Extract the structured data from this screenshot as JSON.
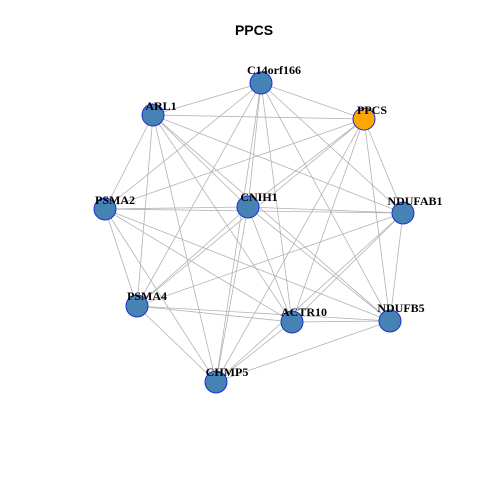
{
  "title": "PPCS",
  "colors": {
    "node_fill": "#4682b4",
    "focus_fill": "#ffa500",
    "node_stroke": "#1f2fd1",
    "edge": "#b3b3b3"
  },
  "nodes": [
    {
      "id": "C14orf166",
      "label": "C14orf166",
      "focus": false
    },
    {
      "id": "PPCS",
      "label": "PPCS",
      "focus": true
    },
    {
      "id": "ARL1",
      "label": "ARL1",
      "focus": false
    },
    {
      "id": "PSMA2",
      "label": "PSMA2",
      "focus": false
    },
    {
      "id": "CNIH1",
      "label": "CNIH1",
      "focus": false
    },
    {
      "id": "NDUFAB1",
      "label": "NDUFAB1",
      "focus": false
    },
    {
      "id": "PSMA4",
      "label": "PSMA4",
      "focus": false
    },
    {
      "id": "ACTR10",
      "label": "ACTR10",
      "focus": false
    },
    {
      "id": "NDUFB5",
      "label": "NDUFB5",
      "focus": false
    },
    {
      "id": "CHMP5",
      "label": "CHMP5",
      "focus": false
    }
  ],
  "edges": [
    [
      "C14orf166",
      "ARL1"
    ],
    [
      "C14orf166",
      "PPCS"
    ],
    [
      "C14orf166",
      "PSMA2"
    ],
    [
      "C14orf166",
      "CNIH1"
    ],
    [
      "C14orf166",
      "NDUFAB1"
    ],
    [
      "C14orf166",
      "PSMA4"
    ],
    [
      "C14orf166",
      "ACTR10"
    ],
    [
      "C14orf166",
      "NDUFB5"
    ],
    [
      "C14orf166",
      "CHMP5"
    ],
    [
      "PPCS",
      "ARL1"
    ],
    [
      "PPCS",
      "PSMA2"
    ],
    [
      "PPCS",
      "CNIH1"
    ],
    [
      "PPCS",
      "NDUFAB1"
    ],
    [
      "PPCS",
      "PSMA4"
    ],
    [
      "PPCS",
      "ACTR10"
    ],
    [
      "PPCS",
      "NDUFB5"
    ],
    [
      "PPCS",
      "CHMP5"
    ],
    [
      "ARL1",
      "PSMA2"
    ],
    [
      "ARL1",
      "CNIH1"
    ],
    [
      "ARL1",
      "NDUFAB1"
    ],
    [
      "ARL1",
      "PSMA4"
    ],
    [
      "ARL1",
      "ACTR10"
    ],
    [
      "ARL1",
      "NDUFB5"
    ],
    [
      "ARL1",
      "CHMP5"
    ],
    [
      "PSMA2",
      "CNIH1"
    ],
    [
      "PSMA2",
      "NDUFAB1"
    ],
    [
      "PSMA2",
      "PSMA4"
    ],
    [
      "PSMA2",
      "ACTR10"
    ],
    [
      "PSMA2",
      "NDUFB5"
    ],
    [
      "PSMA2",
      "CHMP5"
    ],
    [
      "CNIH1",
      "NDUFAB1"
    ],
    [
      "CNIH1",
      "PSMA4"
    ],
    [
      "CNIH1",
      "ACTR10"
    ],
    [
      "CNIH1",
      "NDUFB5"
    ],
    [
      "CNIH1",
      "CHMP5"
    ],
    [
      "NDUFAB1",
      "PSMA4"
    ],
    [
      "NDUFAB1",
      "ACTR10"
    ],
    [
      "NDUFAB1",
      "NDUFB5"
    ],
    [
      "NDUFAB1",
      "CHMP5"
    ],
    [
      "PSMA4",
      "ACTR10"
    ],
    [
      "PSMA4",
      "NDUFB5"
    ],
    [
      "PSMA4",
      "CHMP5"
    ],
    [
      "ACTR10",
      "NDUFB5"
    ],
    [
      "ACTR10",
      "CHMP5"
    ],
    [
      "NDUFB5",
      "CHMP5"
    ]
  ]
}
